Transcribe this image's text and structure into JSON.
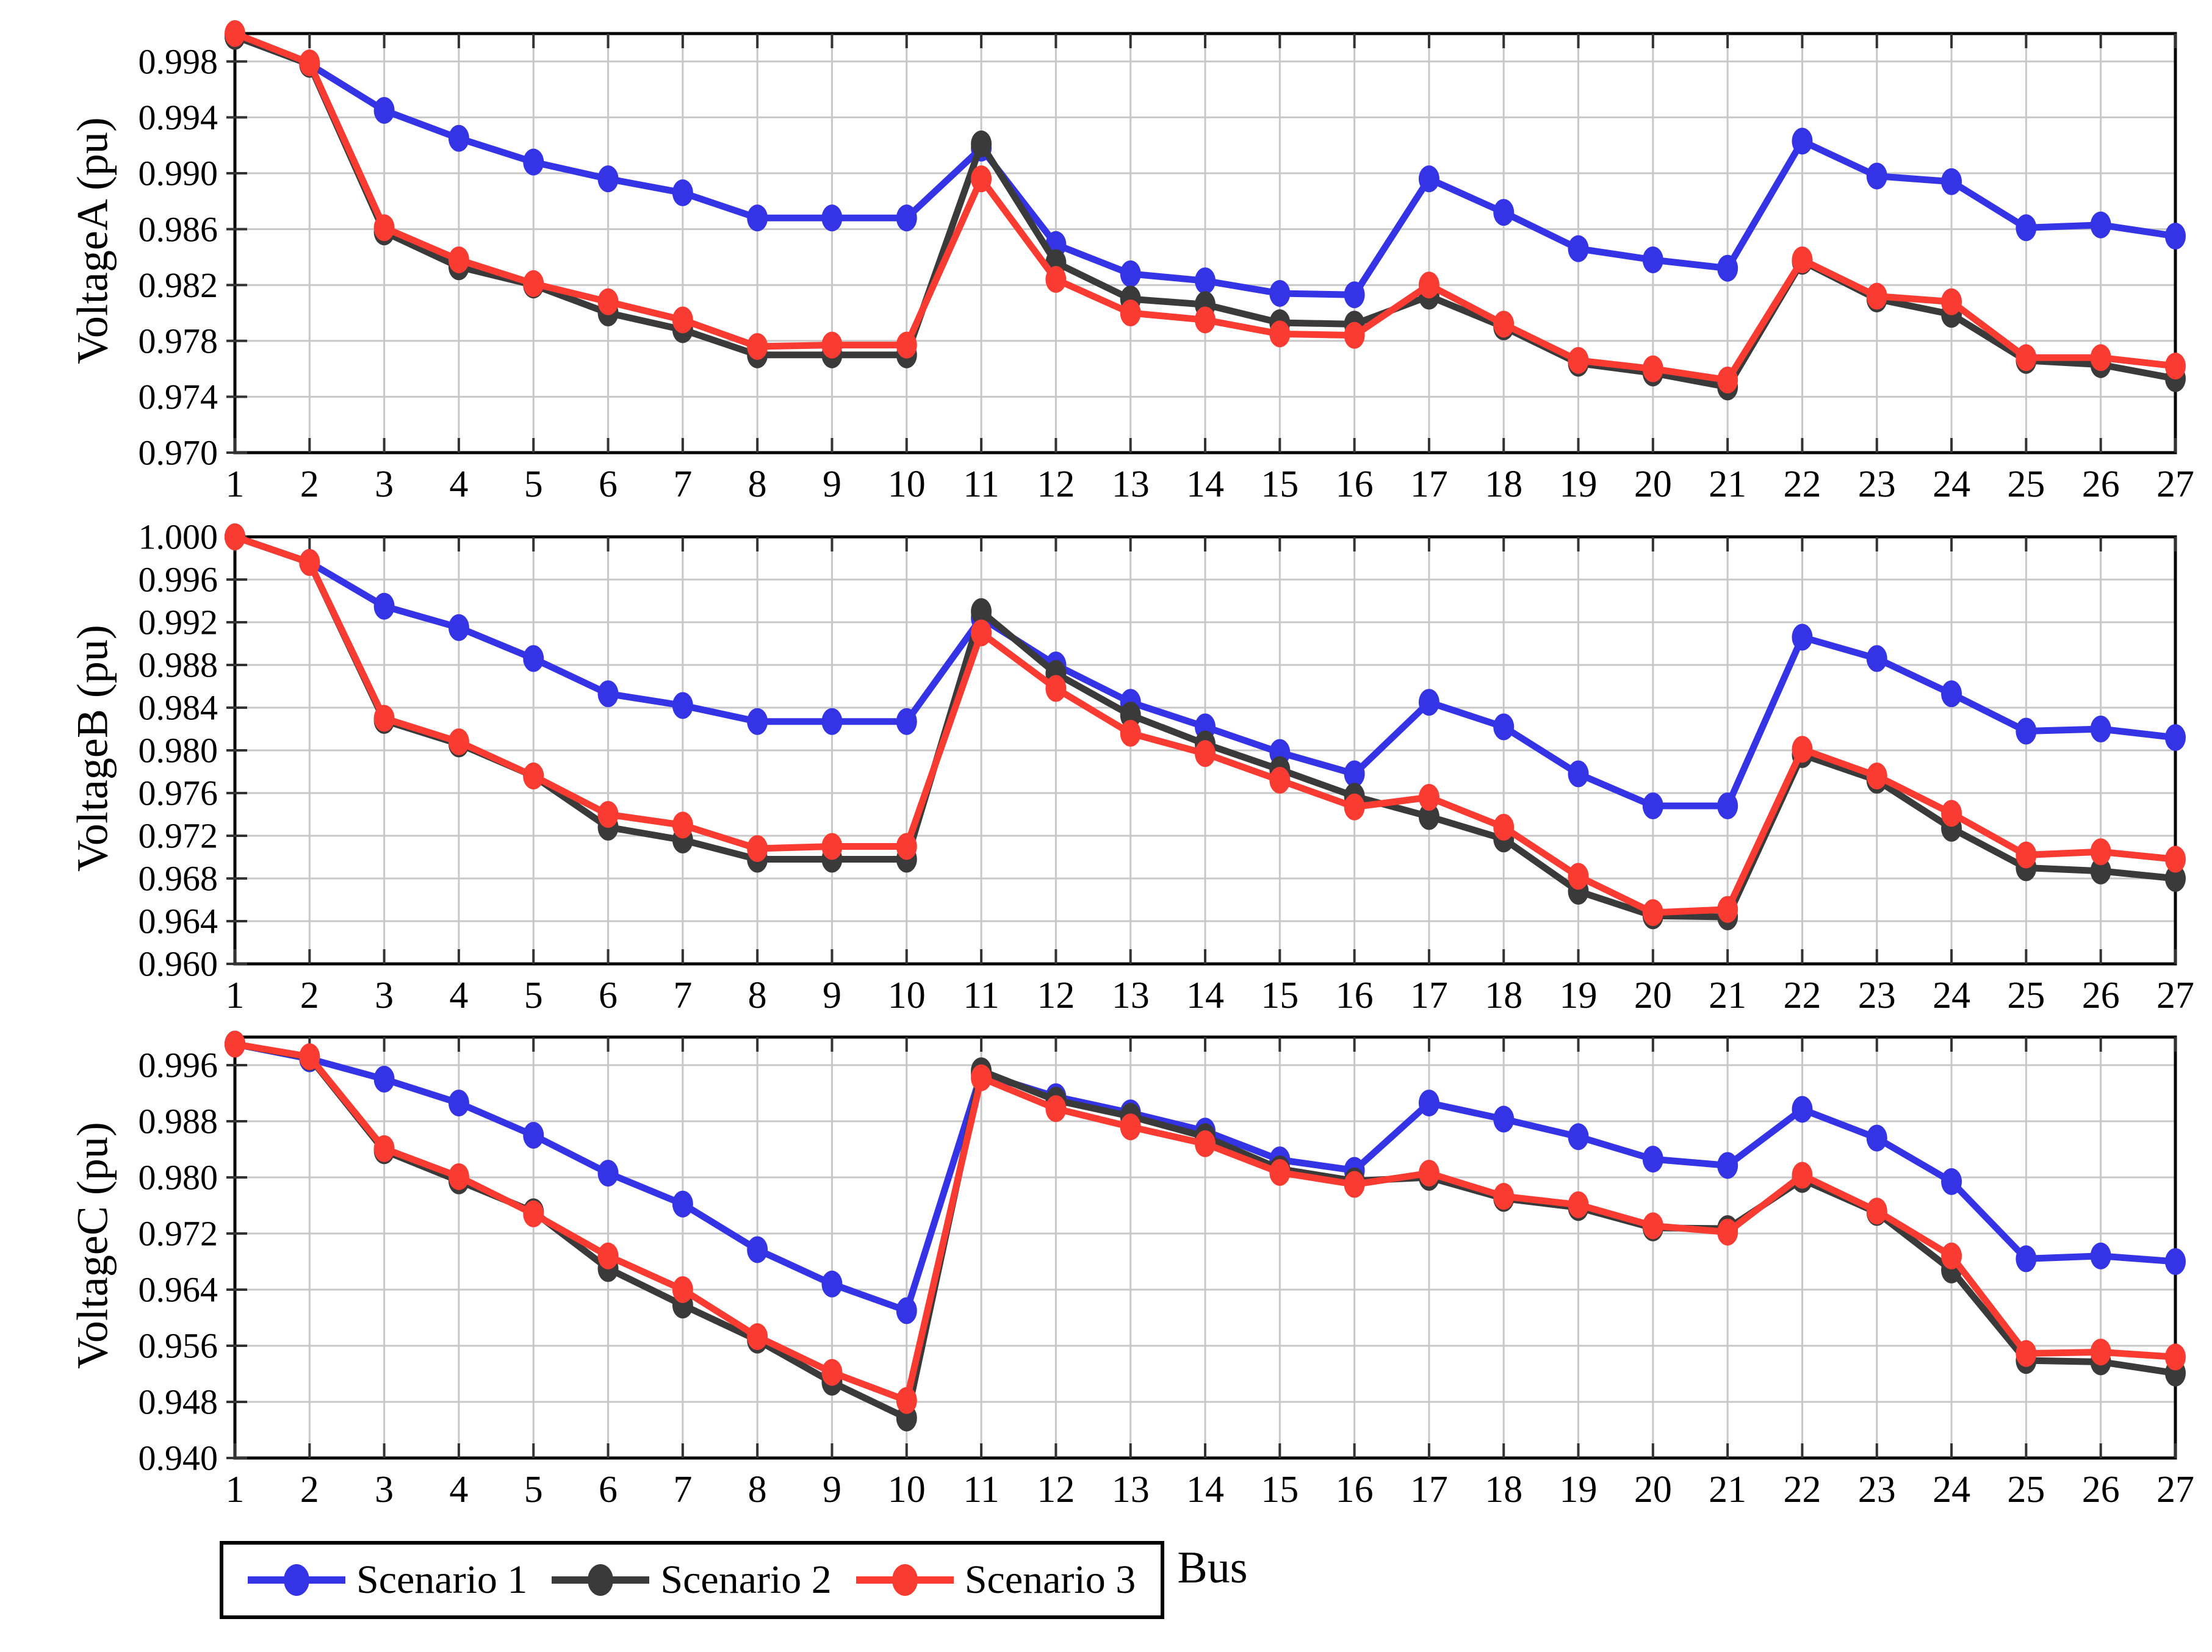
{
  "figure": {
    "xlabel": "Bus",
    "background": "#ffffff",
    "grid_color": "#c8c8c8",
    "frame_color": "#000000",
    "legend": {
      "position": "bottom",
      "items": [
        {
          "label": "Scenario 1",
          "color": "#3434e6"
        },
        {
          "label": "Scenario 2",
          "color": "#3a3a3a"
        },
        {
          "label": "Scenario 3",
          "color": "#f93b31"
        }
      ]
    }
  },
  "chart_data": [
    {
      "type": "line",
      "ylabel": "VoltageA (pu)",
      "xlabel": "Bus",
      "grid": true,
      "legend_position": "bottom",
      "categories": [
        1,
        2,
        3,
        4,
        5,
        6,
        7,
        8,
        9,
        10,
        11,
        12,
        13,
        14,
        15,
        16,
        17,
        18,
        19,
        20,
        21,
        22,
        23,
        24,
        25,
        26,
        27
      ],
      "ylim": [
        0.97,
        1.0
      ],
      "ytick_labels": [
        "0.998",
        "0.994",
        "0.990",
        "0.986",
        "0.982",
        "0.978",
        "0.974",
        "0.970"
      ],
      "yticks": [
        0.998,
        0.994,
        0.99,
        0.986,
        0.982,
        0.978,
        0.974,
        0.97
      ],
      "series": [
        {
          "name": "Scenario 1",
          "color": "#3434e6",
          "values": [
            0.9998,
            0.9978,
            0.9945,
            0.9925,
            0.9908,
            0.9896,
            0.9886,
            0.9868,
            0.9868,
            0.9868,
            0.9918,
            0.9849,
            0.9828,
            0.9823,
            0.9814,
            0.9813,
            0.9896,
            0.9872,
            0.9846,
            0.9838,
            0.9832,
            0.9923,
            0.9898,
            0.9894,
            0.9861,
            0.9863,
            0.9855
          ]
        },
        {
          "name": "Scenario 2",
          "color": "#3a3a3a",
          "values": [
            0.9998,
            0.9978,
            0.9858,
            0.9833,
            0.982,
            0.98,
            0.9788,
            0.977,
            0.977,
            0.977,
            0.9921,
            0.9836,
            0.981,
            0.9806,
            0.9793,
            0.9792,
            0.9812,
            0.979,
            0.9764,
            0.9757,
            0.9747,
            0.9837,
            0.981,
            0.9799,
            0.9766,
            0.9763,
            0.9753
          ]
        },
        {
          "name": "Scenario 3",
          "color": "#f93b31",
          "values": [
            1.0,
            0.9979,
            0.9861,
            0.9838,
            0.9821,
            0.9808,
            0.9795,
            0.9776,
            0.9777,
            0.9777,
            0.9896,
            0.9824,
            0.98,
            0.9795,
            0.9785,
            0.9784,
            0.982,
            0.9792,
            0.9766,
            0.976,
            0.9752,
            0.9838,
            0.9812,
            0.9808,
            0.9768,
            0.9768,
            0.9762
          ]
        }
      ]
    },
    {
      "type": "line",
      "ylabel": "VoltageB (pu)",
      "xlabel": "Bus",
      "grid": true,
      "legend_position": "bottom",
      "categories": [
        1,
        2,
        3,
        4,
        5,
        6,
        7,
        8,
        9,
        10,
        11,
        12,
        13,
        14,
        15,
        16,
        17,
        18,
        19,
        20,
        21,
        22,
        23,
        24,
        25,
        26,
        27
      ],
      "ylim": [
        0.96,
        1.0
      ],
      "ytick_labels": [
        "1.000",
        "0.996",
        "0.992",
        "0.988",
        "0.984",
        "0.980",
        "0.976",
        "0.972",
        "0.968",
        "0.964",
        "0.960"
      ],
      "yticks": [
        1.0,
        0.996,
        0.992,
        0.988,
        0.984,
        0.98,
        0.976,
        0.972,
        0.968,
        0.964,
        0.96
      ],
      "series": [
        {
          "name": "Scenario 1",
          "color": "#3434e6",
          "values": [
            1.0,
            0.9976,
            0.9935,
            0.9915,
            0.9886,
            0.9853,
            0.9842,
            0.9827,
            0.9827,
            0.9827,
            0.9924,
            0.988,
            0.9845,
            0.9822,
            0.9798,
            0.9778,
            0.9845,
            0.9822,
            0.9778,
            0.9748,
            0.9748,
            0.9906,
            0.9886,
            0.9853,
            0.9818,
            0.982,
            0.9812
          ]
        },
        {
          "name": "Scenario 2",
          "color": "#3a3a3a",
          "values": [
            1.0,
            0.9976,
            0.9828,
            0.9806,
            0.9776,
            0.9728,
            0.9716,
            0.9698,
            0.9698,
            0.9698,
            0.993,
            0.9872,
            0.9833,
            0.9806,
            0.9782,
            0.9757,
            0.9738,
            0.9717,
            0.9668,
            0.9645,
            0.9644,
            0.9796,
            0.9772,
            0.9727,
            0.969,
            0.9687,
            0.968
          ]
        },
        {
          "name": "Scenario 3",
          "color": "#f93b31",
          "values": [
            1.0,
            0.9976,
            0.983,
            0.9808,
            0.9776,
            0.974,
            0.973,
            0.9708,
            0.971,
            0.971,
            0.991,
            0.9858,
            0.9816,
            0.9797,
            0.9772,
            0.9747,
            0.9756,
            0.9728,
            0.9682,
            0.9648,
            0.9651,
            0.9801,
            0.9776,
            0.9741,
            0.9702,
            0.9705,
            0.9698
          ]
        }
      ]
    },
    {
      "type": "line",
      "ylabel": "VoltageC (pu)",
      "xlabel": "Bus",
      "grid": true,
      "legend_position": "bottom",
      "categories": [
        1,
        2,
        3,
        4,
        5,
        6,
        7,
        8,
        9,
        10,
        11,
        12,
        13,
        14,
        15,
        16,
        17,
        18,
        19,
        20,
        21,
        22,
        23,
        24,
        25,
        26,
        27
      ],
      "ylim": [
        0.94,
        1.0
      ],
      "ytick_labels": [
        "0.996",
        "0.988",
        "0.980",
        "0.972",
        "0.964",
        "0.956",
        "0.948",
        "0.940"
      ],
      "yticks": [
        0.996,
        0.988,
        0.98,
        0.972,
        0.964,
        0.956,
        0.948,
        0.94
      ],
      "series": [
        {
          "name": "Scenario 1",
          "color": "#3434e6",
          "values": [
            0.999,
            0.9969,
            0.994,
            0.9906,
            0.986,
            0.9806,
            0.9762,
            0.9697,
            0.9648,
            0.961,
            0.9948,
            0.9915,
            0.9892,
            0.9866,
            0.9825,
            0.981,
            0.9906,
            0.9883,
            0.9858,
            0.9826,
            0.9817,
            0.9897,
            0.9856,
            0.9794,
            0.9684,
            0.9688,
            0.968
          ]
        },
        {
          "name": "Scenario 2",
          "color": "#3a3a3a",
          "values": [
            0.999,
            0.9971,
            0.9838,
            0.9795,
            0.9751,
            0.967,
            0.9618,
            0.9568,
            0.9508,
            0.9457,
            0.9952,
            0.991,
            0.9887,
            0.9858,
            0.9812,
            0.9795,
            0.98,
            0.977,
            0.9757,
            0.9728,
            0.9727,
            0.9797,
            0.975,
            0.9668,
            0.9539,
            0.9537,
            0.9521
          ]
        },
        {
          "name": "Scenario 3",
          "color": "#f93b31",
          "values": [
            0.999,
            0.9972,
            0.9841,
            0.9801,
            0.9748,
            0.9688,
            0.964,
            0.9573,
            0.9522,
            0.9482,
            0.9942,
            0.9898,
            0.9872,
            0.9848,
            0.9807,
            0.979,
            0.9806,
            0.9773,
            0.9761,
            0.9731,
            0.9722,
            0.9803,
            0.9752,
            0.9688,
            0.9549,
            0.9551,
            0.9544
          ]
        }
      ]
    }
  ]
}
